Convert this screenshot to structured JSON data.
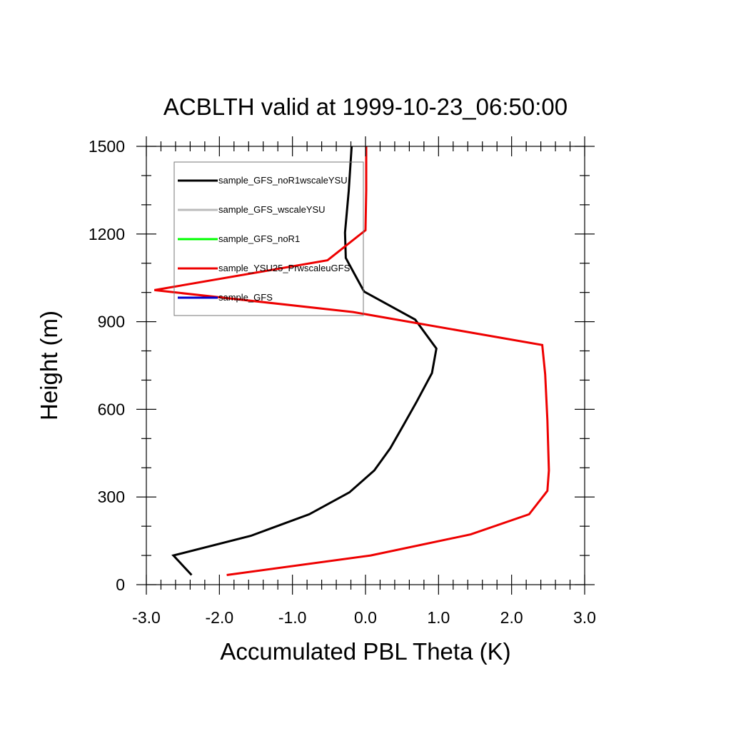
{
  "chart_data": {
    "type": "line",
    "title": "ACBLTH valid at 1999-10-23_06:50:00",
    "xlabel": "Accumulated PBL Theta (K)",
    "ylabel": "Height (m)",
    "xlim": [
      -3.0,
      3.0
    ],
    "ylim": [
      0,
      1500
    ],
    "xticks": [
      "-3.0",
      "-2.0",
      "-1.0",
      "0.0",
      "1.0",
      "2.0",
      "3.0"
    ],
    "yticks": [
      "0",
      "300",
      "600",
      "900",
      "1200",
      "1500"
    ],
    "grid": false,
    "legend_position": "top-left",
    "series": [
      {
        "name": "sample_GFS_noR1wscaleYSU",
        "color": "#000000",
        "points": [
          [
            -2.38,
            33
          ],
          [
            -2.63,
            100
          ],
          [
            -1.57,
            167
          ],
          [
            -0.77,
            241
          ],
          [
            -0.22,
            316
          ],
          [
            0.12,
            391
          ],
          [
            0.34,
            467
          ],
          [
            0.52,
            546
          ],
          [
            0.7,
            626
          ],
          [
            0.91,
            724
          ],
          [
            0.97,
            808
          ],
          [
            0.68,
            907
          ],
          [
            -0.02,
            1003
          ],
          [
            -0.14,
            1058
          ],
          [
            -0.27,
            1118
          ],
          [
            -0.28,
            1205
          ],
          [
            -0.23,
            1347
          ],
          [
            -0.19,
            1500
          ]
        ]
      },
      {
        "name": "sample_GFS_wscaleYSU",
        "color": "#bbbbbb",
        "points": []
      },
      {
        "name": "sample_GFS_noR1",
        "color": "#00ff00",
        "points": []
      },
      {
        "name": "sample_YSU25_PrwscaleuGFS",
        "color": "#ee0000",
        "points": [
          [
            -1.9,
            33
          ],
          [
            0.07,
            100
          ],
          [
            1.44,
            172
          ],
          [
            2.24,
            241
          ],
          [
            2.49,
            321
          ],
          [
            2.51,
            391
          ],
          [
            2.49,
            563
          ],
          [
            2.46,
            720
          ],
          [
            2.42,
            820
          ],
          [
            -0.17,
            933
          ],
          [
            -2.89,
            1008
          ],
          [
            -0.52,
            1110
          ],
          [
            0.0,
            1213
          ],
          [
            0.01,
            1350
          ],
          [
            0.01,
            1500
          ]
        ]
      },
      {
        "name": "sample_GFS",
        "color": "#0000cc",
        "points": []
      }
    ]
  }
}
